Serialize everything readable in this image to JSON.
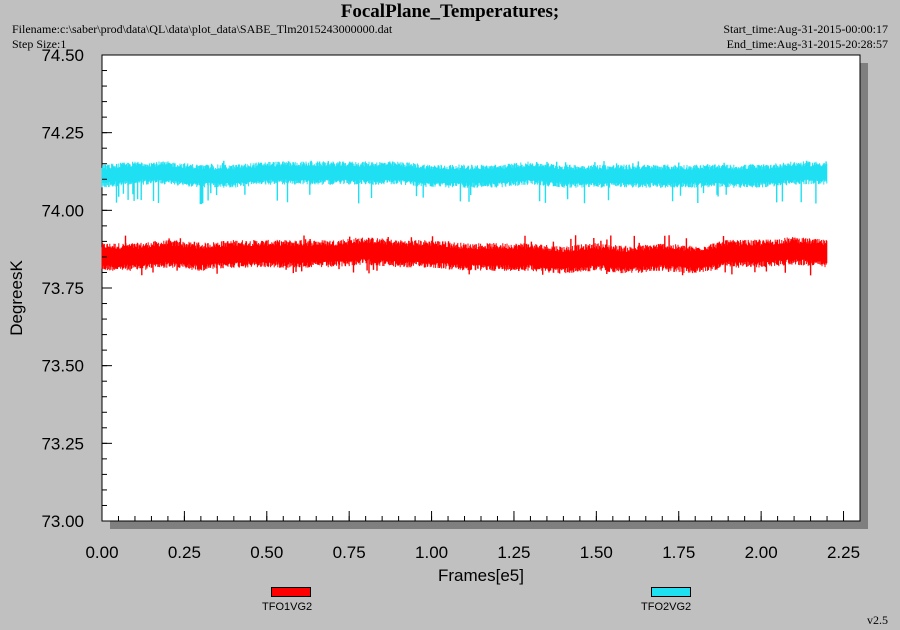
{
  "header": {
    "title": "FocalPlane_Temperatures;",
    "filename": "Filename:c:\\saber\\prod\\data\\QL\\data\\plot_data\\SABE_Tlm2015243000000.dat",
    "step_size": "Step Size:1",
    "start_time": "Start_time:Aug-31-2015-00:00:17",
    "end_time": "End_time:Aug-31-2015-20:28:57"
  },
  "version": "v2.5",
  "colors": {
    "series1": "#ff0000",
    "series2": "#1ee0f2",
    "plot_bg": "#ffffff",
    "page_bg": "#c0c0c0"
  },
  "chart_data": {
    "type": "line",
    "xlabel": "Frames[e5]",
    "ylabel": "DegreesK",
    "xlim": [
      0.0,
      2.3
    ],
    "ylim": [
      73.0,
      74.5
    ],
    "xticks": [
      "0.00",
      "0.25",
      "0.50",
      "0.75",
      "1.00",
      "1.25",
      "1.50",
      "1.75",
      "2.00",
      "2.25"
    ],
    "yticks": [
      "73.00",
      "73.25",
      "73.50",
      "73.75",
      "74.00",
      "74.25",
      "74.50"
    ],
    "grid": false,
    "legend_position": "bottom",
    "series": [
      {
        "name": "TFO1VG2",
        "color": "#ff0000",
        "x_range": [
          0.0,
          2.2
        ],
        "mean": 73.85,
        "min": 73.79,
        "max": 73.92,
        "x": [
          0.0,
          0.1,
          0.2,
          0.3,
          0.4,
          0.5,
          0.6,
          0.7,
          0.8,
          0.9,
          1.0,
          1.1,
          1.2,
          1.3,
          1.4,
          1.5,
          1.6,
          1.7,
          1.8,
          1.9,
          2.0,
          2.1,
          2.2
        ],
        "y": [
          73.85,
          73.85,
          73.86,
          73.85,
          73.86,
          73.86,
          73.86,
          73.86,
          73.87,
          73.86,
          73.86,
          73.85,
          73.85,
          73.85,
          73.84,
          73.85,
          73.84,
          73.85,
          73.84,
          73.86,
          73.86,
          73.87,
          73.86
        ]
      },
      {
        "name": "TFO2VG2",
        "color": "#1ee0f2",
        "x_range": [
          0.0,
          2.2
        ],
        "mean": 74.11,
        "min": 74.02,
        "max": 74.16,
        "spike": {
          "x": 0.3,
          "y": 74.02
        },
        "x": [
          0.0,
          0.1,
          0.2,
          0.3,
          0.4,
          0.5,
          0.6,
          0.7,
          0.8,
          0.9,
          1.0,
          1.1,
          1.2,
          1.3,
          1.4,
          1.5,
          1.6,
          1.7,
          1.8,
          1.9,
          2.0,
          2.1,
          2.2
        ],
        "y": [
          74.11,
          74.12,
          74.12,
          74.11,
          74.11,
          74.12,
          74.12,
          74.12,
          74.12,
          74.12,
          74.11,
          74.11,
          74.11,
          74.12,
          74.11,
          74.11,
          74.11,
          74.11,
          74.11,
          74.11,
          74.11,
          74.12,
          74.12
        ]
      }
    ]
  }
}
